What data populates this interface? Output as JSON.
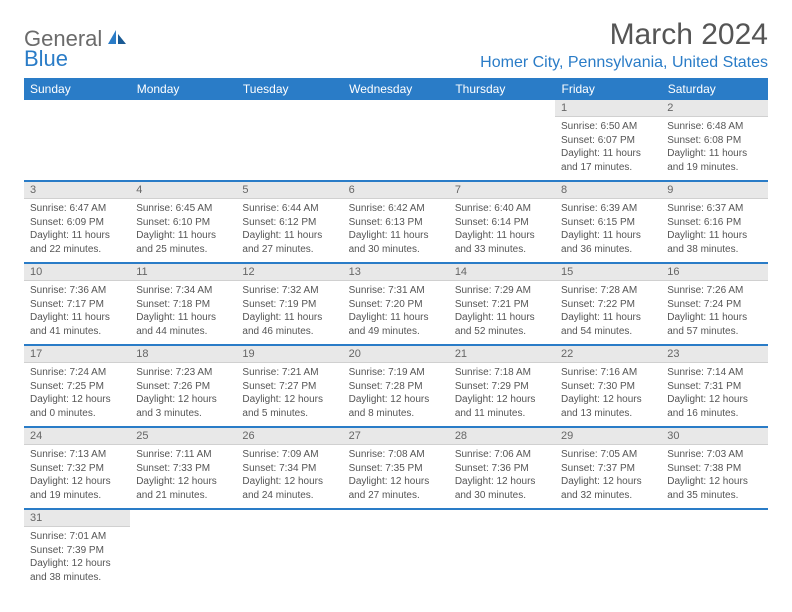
{
  "logo": {
    "general": "General",
    "blue": "Blue"
  },
  "title": "March 2024",
  "location": "Homer City, Pennsylvania, United States",
  "colors": {
    "brand": "#2a7cc7",
    "header_bg": "#2a7cc7",
    "daynum_bg": "#e8e8e8",
    "text": "#555555"
  },
  "weekdays": [
    "Sunday",
    "Monday",
    "Tuesday",
    "Wednesday",
    "Thursday",
    "Friday",
    "Saturday"
  ],
  "weeks": [
    [
      {
        "n": "",
        "sr": "",
        "ss": "",
        "dl": ""
      },
      {
        "n": "",
        "sr": "",
        "ss": "",
        "dl": ""
      },
      {
        "n": "",
        "sr": "",
        "ss": "",
        "dl": ""
      },
      {
        "n": "",
        "sr": "",
        "ss": "",
        "dl": ""
      },
      {
        "n": "",
        "sr": "",
        "ss": "",
        "dl": ""
      },
      {
        "n": "1",
        "sr": "Sunrise: 6:50 AM",
        "ss": "Sunset: 6:07 PM",
        "dl": "Daylight: 11 hours and 17 minutes."
      },
      {
        "n": "2",
        "sr": "Sunrise: 6:48 AM",
        "ss": "Sunset: 6:08 PM",
        "dl": "Daylight: 11 hours and 19 minutes."
      }
    ],
    [
      {
        "n": "3",
        "sr": "Sunrise: 6:47 AM",
        "ss": "Sunset: 6:09 PM",
        "dl": "Daylight: 11 hours and 22 minutes."
      },
      {
        "n": "4",
        "sr": "Sunrise: 6:45 AM",
        "ss": "Sunset: 6:10 PM",
        "dl": "Daylight: 11 hours and 25 minutes."
      },
      {
        "n": "5",
        "sr": "Sunrise: 6:44 AM",
        "ss": "Sunset: 6:12 PM",
        "dl": "Daylight: 11 hours and 27 minutes."
      },
      {
        "n": "6",
        "sr": "Sunrise: 6:42 AM",
        "ss": "Sunset: 6:13 PM",
        "dl": "Daylight: 11 hours and 30 minutes."
      },
      {
        "n": "7",
        "sr": "Sunrise: 6:40 AM",
        "ss": "Sunset: 6:14 PM",
        "dl": "Daylight: 11 hours and 33 minutes."
      },
      {
        "n": "8",
        "sr": "Sunrise: 6:39 AM",
        "ss": "Sunset: 6:15 PM",
        "dl": "Daylight: 11 hours and 36 minutes."
      },
      {
        "n": "9",
        "sr": "Sunrise: 6:37 AM",
        "ss": "Sunset: 6:16 PM",
        "dl": "Daylight: 11 hours and 38 minutes."
      }
    ],
    [
      {
        "n": "10",
        "sr": "Sunrise: 7:36 AM",
        "ss": "Sunset: 7:17 PM",
        "dl": "Daylight: 11 hours and 41 minutes."
      },
      {
        "n": "11",
        "sr": "Sunrise: 7:34 AM",
        "ss": "Sunset: 7:18 PM",
        "dl": "Daylight: 11 hours and 44 minutes."
      },
      {
        "n": "12",
        "sr": "Sunrise: 7:32 AM",
        "ss": "Sunset: 7:19 PM",
        "dl": "Daylight: 11 hours and 46 minutes."
      },
      {
        "n": "13",
        "sr": "Sunrise: 7:31 AM",
        "ss": "Sunset: 7:20 PM",
        "dl": "Daylight: 11 hours and 49 minutes."
      },
      {
        "n": "14",
        "sr": "Sunrise: 7:29 AM",
        "ss": "Sunset: 7:21 PM",
        "dl": "Daylight: 11 hours and 52 minutes."
      },
      {
        "n": "15",
        "sr": "Sunrise: 7:28 AM",
        "ss": "Sunset: 7:22 PM",
        "dl": "Daylight: 11 hours and 54 minutes."
      },
      {
        "n": "16",
        "sr": "Sunrise: 7:26 AM",
        "ss": "Sunset: 7:24 PM",
        "dl": "Daylight: 11 hours and 57 minutes."
      }
    ],
    [
      {
        "n": "17",
        "sr": "Sunrise: 7:24 AM",
        "ss": "Sunset: 7:25 PM",
        "dl": "Daylight: 12 hours and 0 minutes."
      },
      {
        "n": "18",
        "sr": "Sunrise: 7:23 AM",
        "ss": "Sunset: 7:26 PM",
        "dl": "Daylight: 12 hours and 3 minutes."
      },
      {
        "n": "19",
        "sr": "Sunrise: 7:21 AM",
        "ss": "Sunset: 7:27 PM",
        "dl": "Daylight: 12 hours and 5 minutes."
      },
      {
        "n": "20",
        "sr": "Sunrise: 7:19 AM",
        "ss": "Sunset: 7:28 PM",
        "dl": "Daylight: 12 hours and 8 minutes."
      },
      {
        "n": "21",
        "sr": "Sunrise: 7:18 AM",
        "ss": "Sunset: 7:29 PM",
        "dl": "Daylight: 12 hours and 11 minutes."
      },
      {
        "n": "22",
        "sr": "Sunrise: 7:16 AM",
        "ss": "Sunset: 7:30 PM",
        "dl": "Daylight: 12 hours and 13 minutes."
      },
      {
        "n": "23",
        "sr": "Sunrise: 7:14 AM",
        "ss": "Sunset: 7:31 PM",
        "dl": "Daylight: 12 hours and 16 minutes."
      }
    ],
    [
      {
        "n": "24",
        "sr": "Sunrise: 7:13 AM",
        "ss": "Sunset: 7:32 PM",
        "dl": "Daylight: 12 hours and 19 minutes."
      },
      {
        "n": "25",
        "sr": "Sunrise: 7:11 AM",
        "ss": "Sunset: 7:33 PM",
        "dl": "Daylight: 12 hours and 21 minutes."
      },
      {
        "n": "26",
        "sr": "Sunrise: 7:09 AM",
        "ss": "Sunset: 7:34 PM",
        "dl": "Daylight: 12 hours and 24 minutes."
      },
      {
        "n": "27",
        "sr": "Sunrise: 7:08 AM",
        "ss": "Sunset: 7:35 PM",
        "dl": "Daylight: 12 hours and 27 minutes."
      },
      {
        "n": "28",
        "sr": "Sunrise: 7:06 AM",
        "ss": "Sunset: 7:36 PM",
        "dl": "Daylight: 12 hours and 30 minutes."
      },
      {
        "n": "29",
        "sr": "Sunrise: 7:05 AM",
        "ss": "Sunset: 7:37 PM",
        "dl": "Daylight: 12 hours and 32 minutes."
      },
      {
        "n": "30",
        "sr": "Sunrise: 7:03 AM",
        "ss": "Sunset: 7:38 PM",
        "dl": "Daylight: 12 hours and 35 minutes."
      }
    ],
    [
      {
        "n": "31",
        "sr": "Sunrise: 7:01 AM",
        "ss": "Sunset: 7:39 PM",
        "dl": "Daylight: 12 hours and 38 minutes."
      },
      {
        "n": "",
        "sr": "",
        "ss": "",
        "dl": ""
      },
      {
        "n": "",
        "sr": "",
        "ss": "",
        "dl": ""
      },
      {
        "n": "",
        "sr": "",
        "ss": "",
        "dl": ""
      },
      {
        "n": "",
        "sr": "",
        "ss": "",
        "dl": ""
      },
      {
        "n": "",
        "sr": "",
        "ss": "",
        "dl": ""
      },
      {
        "n": "",
        "sr": "",
        "ss": "",
        "dl": ""
      }
    ]
  ]
}
